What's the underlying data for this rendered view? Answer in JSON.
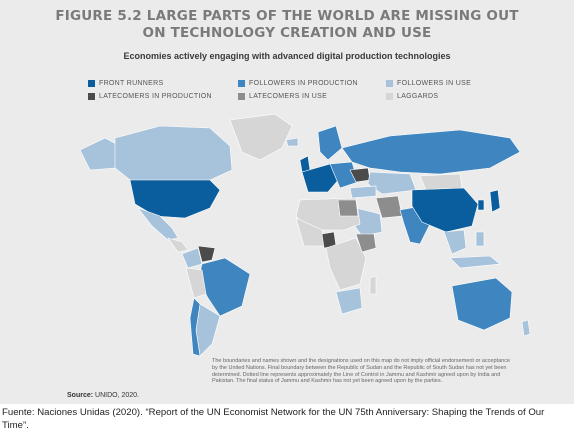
{
  "figure": {
    "title_line1": "FIGURE 5.2 LARGE PARTS OF THE WORLD ARE MISSING OUT",
    "title_line2": "ON TECHNOLOGY CREATION AND USE",
    "subtitle": "Economies actively engaging with advanced digital production technologies",
    "legend": [
      {
        "label": "FRONT RUNNERS",
        "color": "#0b5e9e"
      },
      {
        "label": "FOLLOWERS IN PRODUCTION",
        "color": "#3f86c0"
      },
      {
        "label": "FOLLOWERS IN USE",
        "color": "#a7c3dc"
      },
      {
        "label": "LATECOMERS IN PRODUCTION",
        "color": "#4b4b4b"
      },
      {
        "label": "LATECOMERS IN USE",
        "color": "#8d8d8d"
      },
      {
        "label": "LAGGARDS",
        "color": "#d6d6d6"
      }
    ],
    "source_label": "Source:",
    "source_text": " UNIDO, 2020.",
    "disclaimer": "The boundaries and names shown and the designations used on this map do not imply official endorsement or acceptance by the United Nations. Final boundary between the Republic of Sudan and the Republic of South Sudan has not yet been determined. Dotted line represents approximately the Line of Control in Jammu and Kashmir agreed upon by India and Pakistan. The final status of Jammu and Kashmir has not yet been agreed upon by the parties."
  },
  "caption": "Fuente: Naciones Unidas (2020). “Report of the UN Economist Network for the UN 75th Anniversary: Shaping the Trends of Our Time”.",
  "colors": {
    "front_runners": "#0b5e9e",
    "followers_production": "#3f86c0",
    "followers_use": "#a7c3dc",
    "latecomers_production": "#4b4b4b",
    "latecomers_use": "#8d8d8d",
    "laggards": "#d6d6d6"
  }
}
